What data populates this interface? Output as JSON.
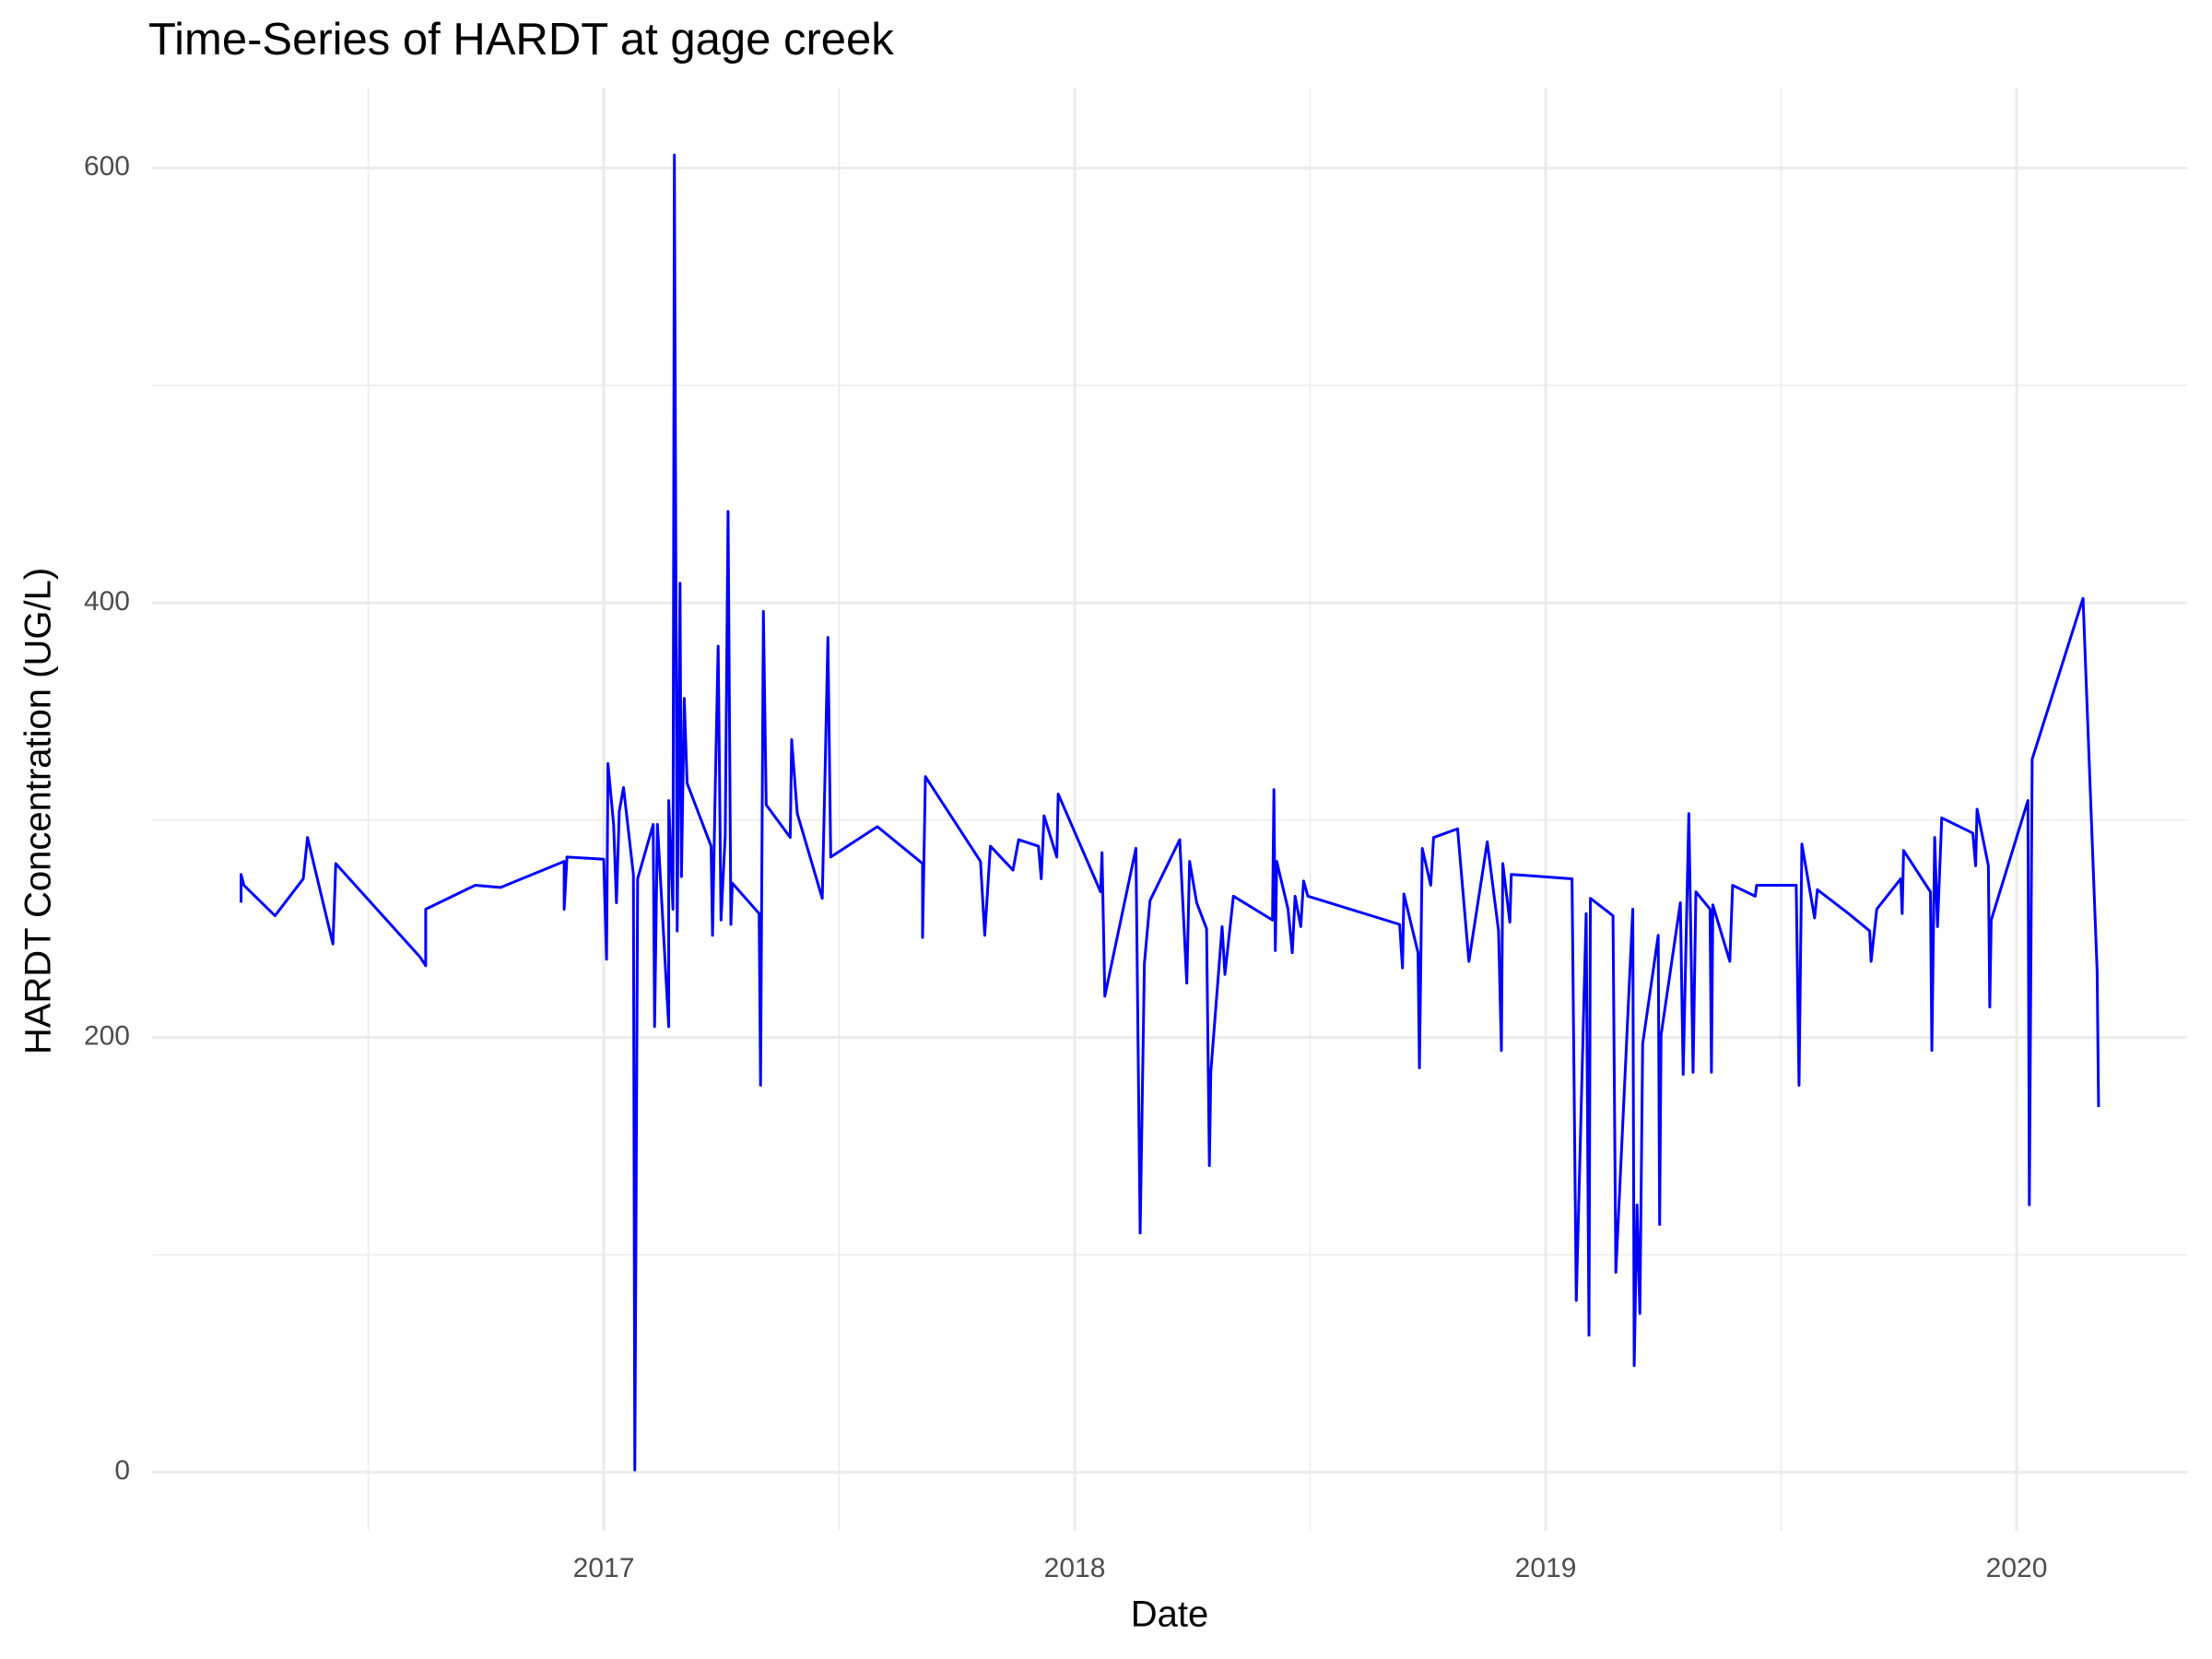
{
  "chart_data": {
    "type": "line",
    "title": "Time-Series of HARDT at gage creek",
    "x_label": "Date",
    "y_label": "HARDT Concentration (UG/L)",
    "color": "#0000ff",
    "grid": true,
    "xlim": [
      2016.041,
      2020.362
    ],
    "ylim": [
      -27,
      637
    ],
    "xticks": [
      2017,
      2018,
      2019,
      2020
    ],
    "yticks": [
      0,
      200,
      400,
      600
    ],
    "minor_xticks": [
      2016.5,
      2017.5,
      2018.5,
      2019.5
    ],
    "minor_yticks": [
      100,
      300,
      500
    ],
    "x": [
      2016.23,
      2016.23,
      2016.236,
      2016.302,
      2016.362,
      2016.371,
      2016.425,
      2016.431,
      2016.61,
      2016.622,
      2016.622,
      2016.727,
      2016.781,
      2016.916,
      2016.916,
      2016.922,
      2017.0,
      2017.006,
      2017.009,
      2017.021,
      2017.027,
      2017.033,
      2017.042,
      2017.063,
      2017.066,
      2017.072,
      2017.105,
      2017.108,
      2017.114,
      2017.138,
      2017.138,
      2017.147,
      2017.15,
      2017.156,
      2017.162,
      2017.165,
      2017.171,
      2017.177,
      2017.228,
      2017.231,
      2017.237,
      2017.243,
      2017.249,
      2017.258,
      2017.264,
      2017.27,
      2017.273,
      2017.33,
      2017.333,
      2017.339,
      2017.345,
      2017.396,
      2017.399,
      2017.411,
      2017.464,
      2017.47,
      2017.476,
      2017.482,
      2017.581,
      2017.677,
      2017.677,
      2017.683,
      2017.8,
      2017.809,
      2017.821,
      2017.869,
      2017.881,
      2017.923,
      2017.929,
      2017.935,
      2017.962,
      2017.965,
      2018.055,
      2018.058,
      2018.064,
      2018.13,
      2018.139,
      2018.148,
      2018.16,
      2018.223,
      2018.238,
      2018.244,
      2018.259,
      2018.28,
      2018.286,
      2018.289,
      2018.313,
      2018.319,
      2018.337,
      2018.42,
      2018.423,
      2018.426,
      2018.429,
      2018.453,
      2018.462,
      2018.468,
      2018.48,
      2018.486,
      2018.495,
      2018.69,
      2018.696,
      2018.699,
      2018.729,
      2018.732,
      2018.738,
      2018.756,
      2018.762,
      2018.813,
      2018.837,
      2018.876,
      2018.9,
      2018.906,
      2018.909,
      2018.924,
      2018.927,
      2019.056,
      2019.065,
      2019.086,
      2019.092,
      2019.095,
      2019.143,
      2019.149,
      2019.185,
      2019.188,
      2019.194,
      2019.2,
      2019.206,
      2019.239,
      2019.242,
      2019.245,
      2019.286,
      2019.292,
      2019.304,
      2019.313,
      2019.319,
      2019.349,
      2019.352,
      2019.355,
      2019.391,
      2019.397,
      2019.445,
      2019.448,
      2019.532,
      2019.538,
      2019.544,
      2019.571,
      2019.577,
      2019.643,
      2019.688,
      2019.691,
      2019.703,
      2019.754,
      2019.757,
      2019.76,
      2019.817,
      2019.82,
      2019.826,
      2019.832,
      2019.841,
      2019.907,
      2019.913,
      2019.916,
      2019.94,
      2019.943,
      2019.946,
      2020.024,
      2020.027,
      2020.033,
      2020.141,
      2020.171,
      2020.174
    ],
    "values": [
      262,
      275,
      270,
      256,
      273,
      292,
      243,
      280,
      237,
      233,
      259,
      270,
      269,
      281,
      259,
      283,
      282,
      236,
      326,
      298,
      262,
      304,
      315,
      275,
      1,
      273,
      298,
      205,
      298,
      205,
      309,
      259,
      606,
      249,
      409,
      274,
      356,
      317,
      288,
      247,
      317,
      380,
      254,
      293,
      442,
      252,
      271,
      257,
      178,
      396,
      307,
      292,
      337,
      303,
      264,
      322,
      384,
      283,
      297,
      280,
      246,
      320,
      281,
      247,
      288,
      277,
      291,
      288,
      273,
      302,
      283,
      312,
      267,
      285,
      219,
      287,
      110,
      234,
      263,
      291,
      225,
      281,
      262,
      250,
      141,
      184,
      251,
      229,
      265,
      254,
      314,
      240,
      281,
      259,
      239,
      265,
      251,
      272,
      265,
      252,
      232,
      266,
      239,
      186,
      287,
      270,
      292,
      296,
      235,
      290,
      249,
      194,
      280,
      253,
      275,
      273,
      79,
      257,
      63,
      264,
      256,
      92,
      259,
      49,
      123,
      73,
      197,
      247,
      114,
      201,
      262,
      183,
      303,
      184,
      267,
      259,
      184,
      261,
      235,
      270,
      265,
      270,
      270,
      178,
      289,
      255,
      268,
      257,
      249,
      235,
      259,
      273,
      257,
      286,
      267,
      194,
      292,
      251,
      301,
      294,
      279,
      305,
      279,
      214,
      254,
      309,
      123,
      328,
      402,
      230,
      168
    ]
  }
}
